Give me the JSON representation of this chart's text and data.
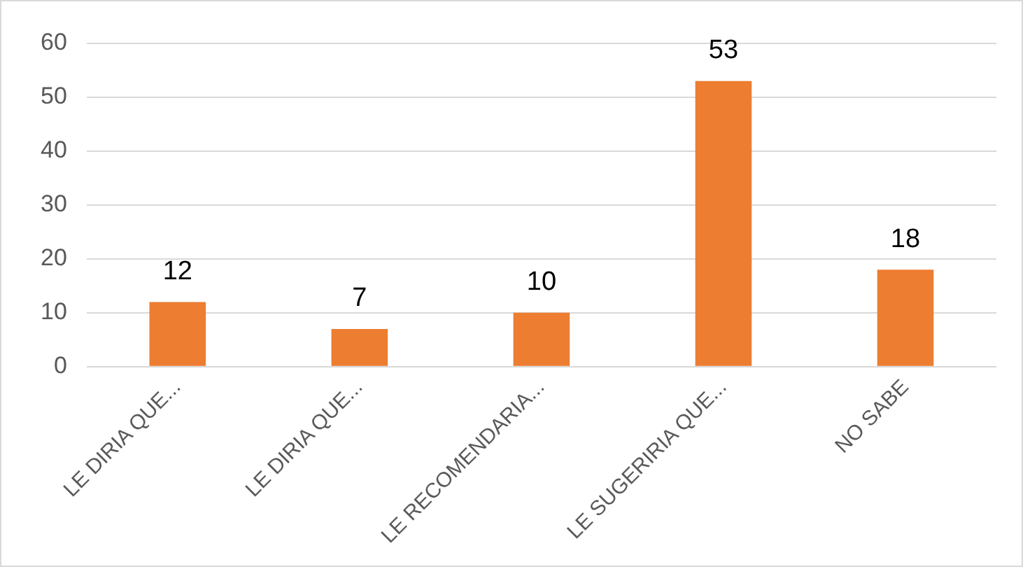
{
  "chart_data": {
    "type": "bar",
    "categories": [
      "LE DIRIA QUE...",
      "LE DIRIA QUE...",
      "LE RECOMENDARIA...",
      "LE SUGERIRIA QUE...",
      "NO SABE"
    ],
    "values": [
      12,
      7,
      10,
      53,
      18
    ],
    "color": "#ed7d31",
    "ylim": [
      0,
      60
    ],
    "yticks": [
      0,
      10,
      20,
      30,
      40,
      50,
      60
    ],
    "grid": "y",
    "data_labels": true,
    "legend": false
  }
}
